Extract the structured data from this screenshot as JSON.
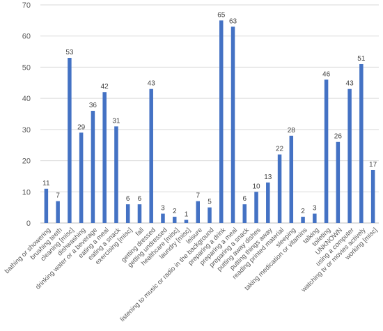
{
  "colors": {
    "bar": "#4472C4",
    "grid": "#D9D9D9",
    "axis": "#BFBFBF",
    "text": "#595959",
    "value_text": "#404040"
  },
  "chart_data": {
    "type": "bar",
    "title": "",
    "xlabel": "",
    "ylabel": "",
    "ylim": [
      0,
      70
    ],
    "yticks": [
      0,
      10,
      20,
      30,
      40,
      50,
      60,
      70
    ],
    "grid": true,
    "data_labels": true,
    "categories": [
      "bathing or showering",
      "brushing teeth",
      "cleaning [misc]",
      "dishwashing",
      "drinking water or a beverage",
      "eating a meal",
      "eating a snack",
      "exercising [misc]",
      "fall",
      "getting dressed",
      "getting undressed",
      "healthcare [misc]",
      "laundry [misc]",
      "leisure",
      "listening to music or radio in the background",
      "preparing a drink",
      "preparing a meal",
      "preparing a snack",
      "putting away dishes",
      "putting things away",
      "reading printed material",
      "sleeping",
      "taking medication or vitamins",
      "talking",
      "toileting",
      "UNKNOWN",
      "using a computer",
      "watching tv or movies actively",
      "working [misc]"
    ],
    "values": [
      11,
      7,
      53,
      29,
      36,
      42,
      31,
      6,
      6,
      43,
      3,
      2,
      1,
      7,
      5,
      65,
      63,
      6,
      10,
      13,
      22,
      28,
      2,
      3,
      46,
      26,
      43,
      51,
      17
    ]
  }
}
